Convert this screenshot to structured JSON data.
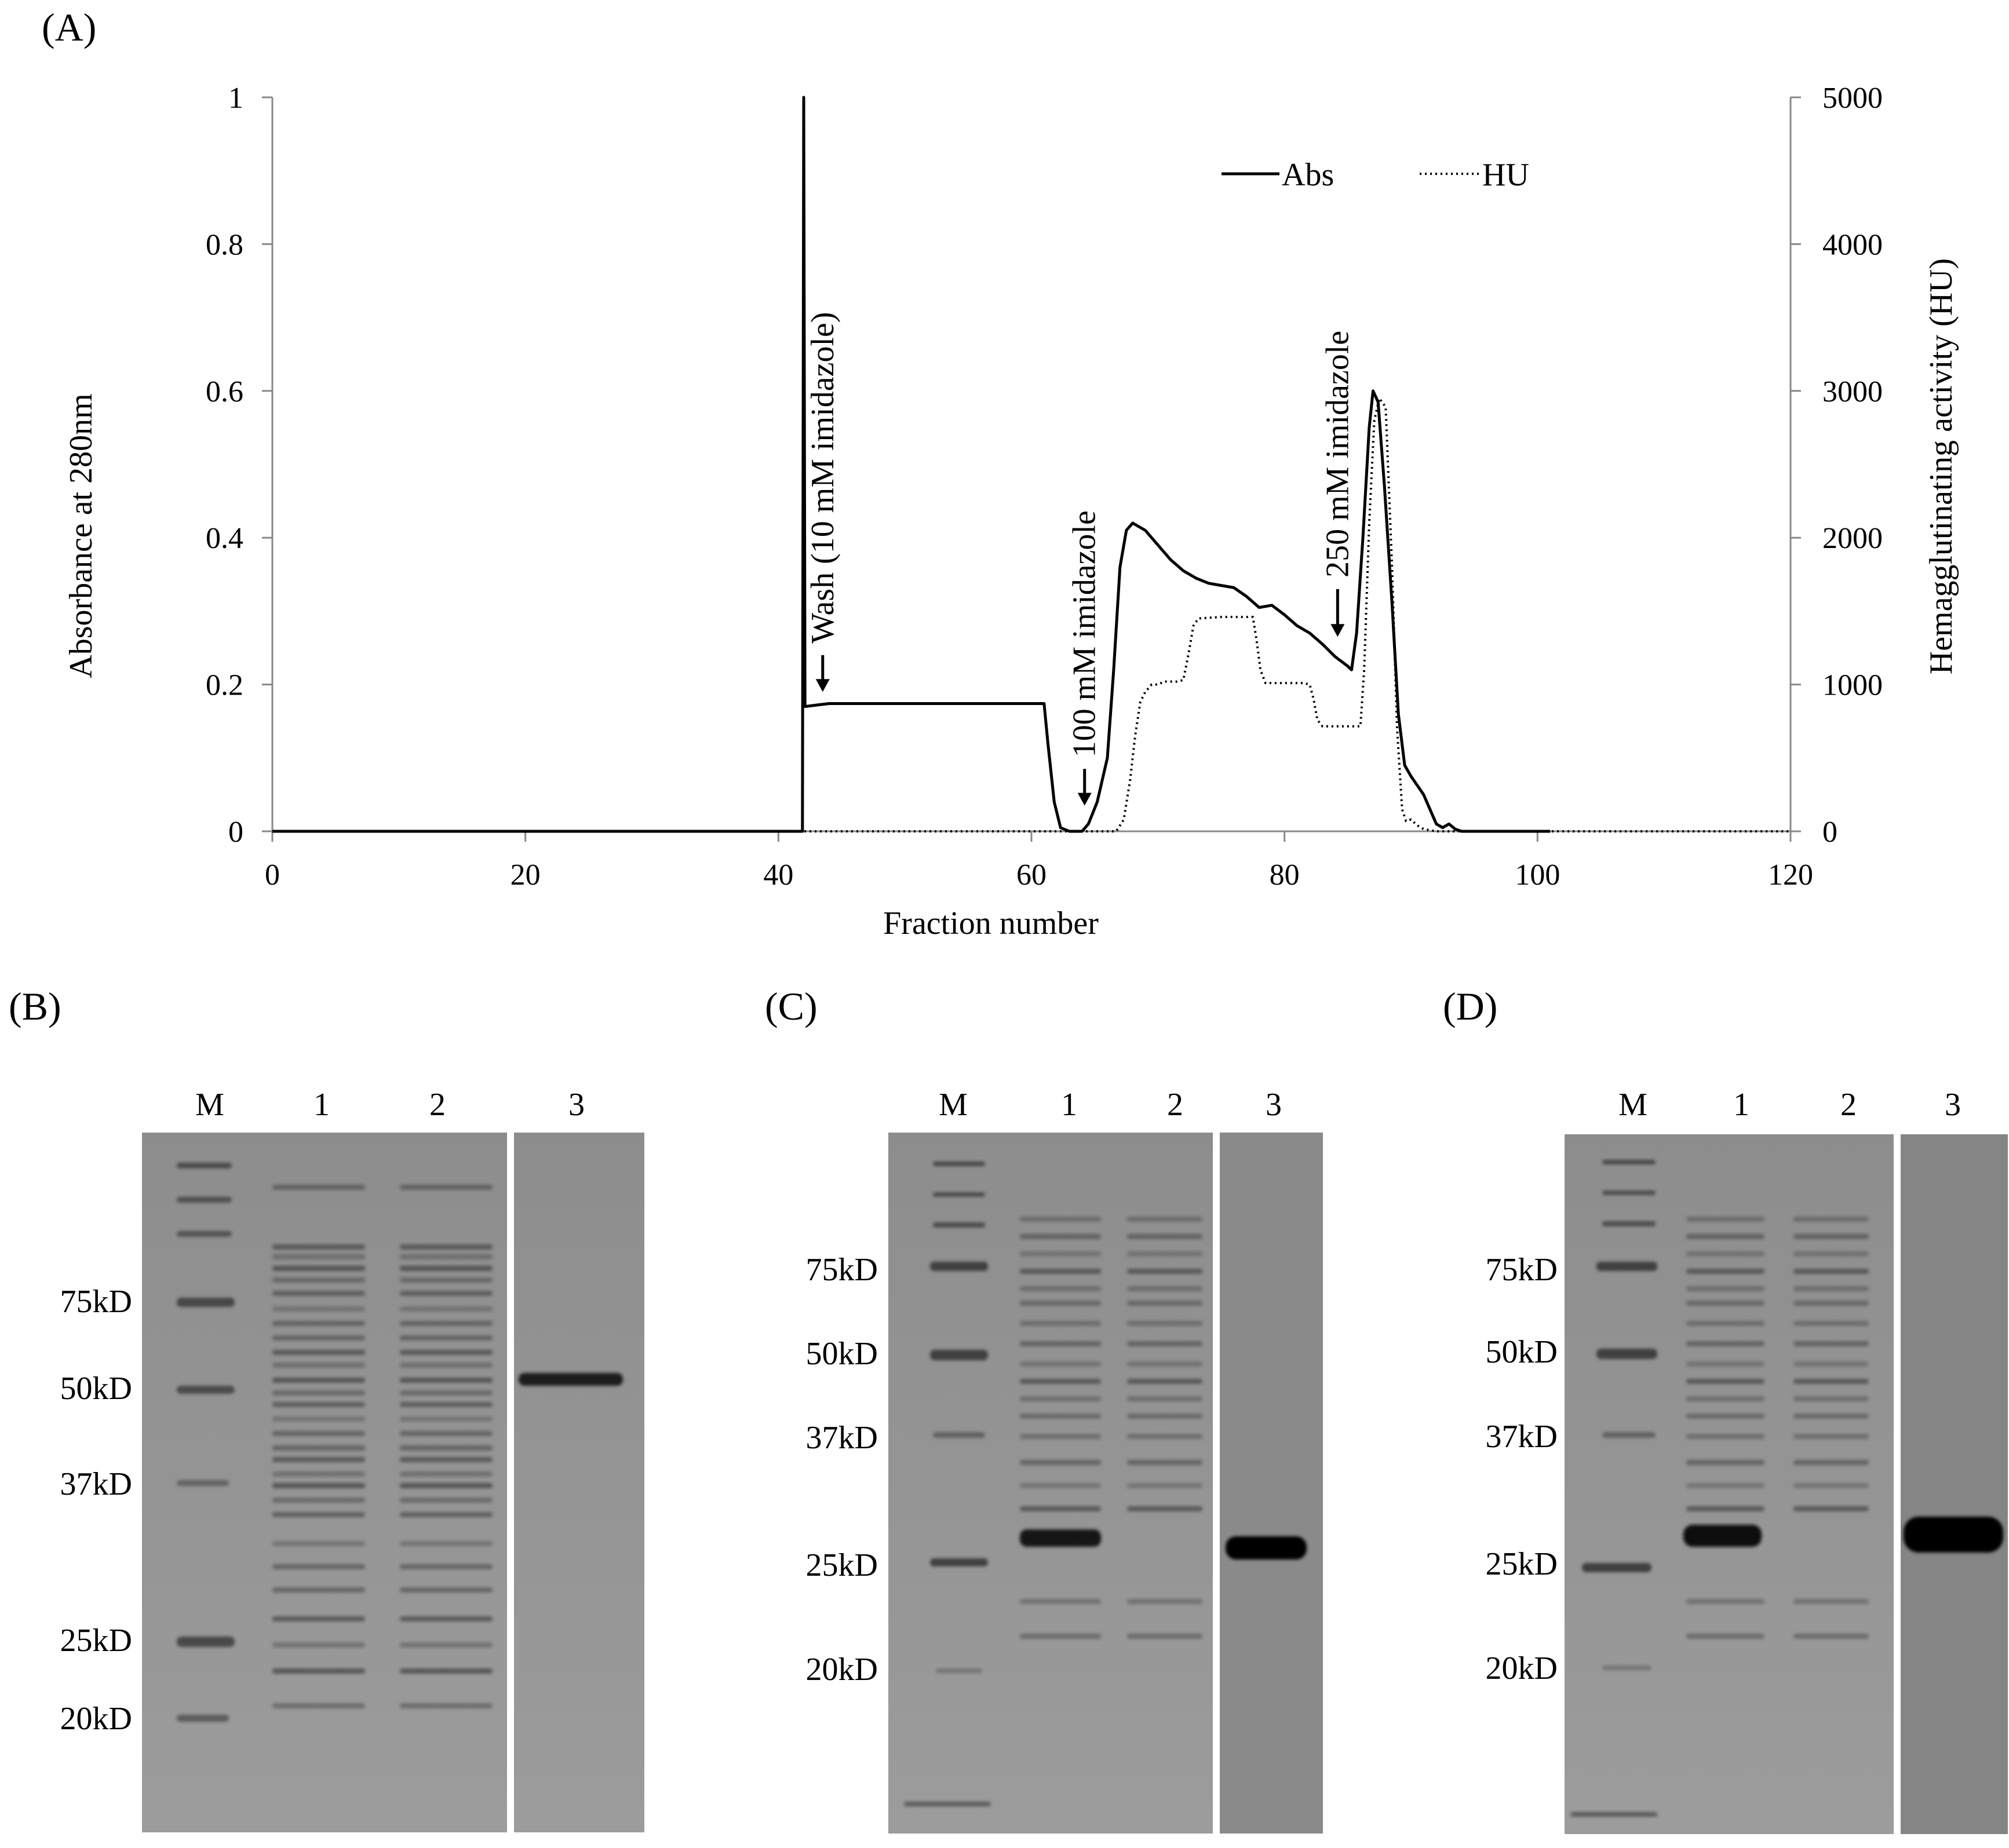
{
  "panels": {
    "A": "(A)",
    "B": "(B)",
    "C": "(C)",
    "D": "(D)"
  },
  "chart_data": {
    "type": "line",
    "xlabel": "Fraction number",
    "ylabel_left": "Absorbance at 280nm",
    "ylabel_right": "Hemagglutinating activity (HU)",
    "xlim": [
      0,
      120
    ],
    "ylim_left": [
      0,
      1
    ],
    "ylim_right": [
      0,
      5000
    ],
    "x_ticks": [
      0,
      20,
      40,
      60,
      80,
      100,
      120
    ],
    "y_left_ticks": [
      0,
      0.2,
      0.4,
      0.6,
      0.8,
      1
    ],
    "y_right_ticks": [
      0,
      1000,
      2000,
      3000,
      4000,
      5000
    ],
    "x_tick_labels": [
      "0",
      "20",
      "40",
      "60",
      "80",
      "100",
      "120"
    ],
    "y_left_tick_labels": [
      "0",
      "0.2",
      "0.4",
      "0.6",
      "0.8",
      "1"
    ],
    "y_right_tick_labels": [
      "0",
      "1000",
      "2000",
      "3000",
      "4000",
      "5000"
    ],
    "grid": false,
    "legend_position": "top-right",
    "series": [
      {
        "name": "Abs",
        "axis": "left",
        "style": "solid",
        "color": "#000000",
        "points": [
          [
            0,
            0
          ],
          [
            41.9,
            0
          ],
          [
            42,
            1
          ],
          [
            42.1,
            0.17
          ],
          [
            43,
            0.172
          ],
          [
            44,
            0.174
          ],
          [
            50,
            0.174
          ],
          [
            60,
            0.174
          ],
          [
            61,
            0.174
          ],
          [
            61.3,
            0.12
          ],
          [
            61.8,
            0.04
          ],
          [
            62.3,
            0.005
          ],
          [
            63,
            0
          ],
          [
            64,
            0
          ],
          [
            64.5,
            0.01
          ],
          [
            65.2,
            0.04
          ],
          [
            66,
            0.1
          ],
          [
            66.5,
            0.22
          ],
          [
            67,
            0.36
          ],
          [
            67.5,
            0.41
          ],
          [
            68,
            0.42
          ],
          [
            69,
            0.41
          ],
          [
            70,
            0.39
          ],
          [
            71,
            0.37
          ],
          [
            72,
            0.355
          ],
          [
            73,
            0.345
          ],
          [
            74,
            0.338
          ],
          [
            75,
            0.335
          ],
          [
            76,
            0.332
          ],
          [
            77,
            0.32
          ],
          [
            78,
            0.305
          ],
          [
            79,
            0.308
          ],
          [
            80,
            0.295
          ],
          [
            81,
            0.28
          ],
          [
            82,
            0.27
          ],
          [
            83,
            0.255
          ],
          [
            84,
            0.238
          ],
          [
            85,
            0.225
          ],
          [
            85.3,
            0.22
          ],
          [
            85.7,
            0.27
          ],
          [
            86.2,
            0.4
          ],
          [
            86.7,
            0.55
          ],
          [
            87,
            0.6
          ],
          [
            87.4,
            0.585
          ],
          [
            87.9,
            0.47
          ],
          [
            88.5,
            0.31
          ],
          [
            89,
            0.16
          ],
          [
            89.5,
            0.09
          ],
          [
            90,
            0.075
          ],
          [
            91,
            0.05
          ],
          [
            92,
            0.01
          ],
          [
            92.5,
            0.005
          ],
          [
            93,
            0.01
          ],
          [
            93.5,
            0.003
          ],
          [
            94,
            0
          ],
          [
            100,
            0
          ],
          [
            101,
            0
          ]
        ]
      },
      {
        "name": "HU",
        "axis": "right",
        "style": "dotted",
        "color": "#000000",
        "points": [
          [
            0,
            0
          ],
          [
            66.7,
            0
          ],
          [
            67.3,
            80
          ],
          [
            67.8,
            350
          ],
          [
            68.2,
            650
          ],
          [
            68.6,
            880
          ],
          [
            69,
            950
          ],
          [
            69.5,
            1000
          ],
          [
            70,
            1000
          ],
          [
            70.5,
            1020
          ],
          [
            71.5,
            1020
          ],
          [
            72,
            1030
          ],
          [
            72.4,
            1200
          ],
          [
            72.8,
            1400
          ],
          [
            73.2,
            1450
          ],
          [
            75,
            1460
          ],
          [
            77,
            1460
          ],
          [
            77.5,
            1460
          ],
          [
            77.8,
            1300
          ],
          [
            78.1,
            1100
          ],
          [
            78.5,
            1010
          ],
          [
            80,
            1010
          ],
          [
            81.5,
            1010
          ],
          [
            82,
            1000
          ],
          [
            82.3,
            900
          ],
          [
            82.6,
            760
          ],
          [
            83,
            715
          ],
          [
            84,
            715
          ],
          [
            85,
            715
          ],
          [
            86,
            715
          ],
          [
            86.3,
            1100
          ],
          [
            86.7,
            2100
          ],
          [
            87.1,
            2800
          ],
          [
            87.5,
            2950
          ],
          [
            88,
            2890
          ],
          [
            88.5,
            1800
          ],
          [
            88.9,
            700
          ],
          [
            89.3,
            150
          ],
          [
            89.6,
            70
          ],
          [
            90,
            80
          ],
          [
            90.5,
            40
          ],
          [
            91,
            15
          ],
          [
            92,
            0
          ],
          [
            120,
            0
          ]
        ]
      }
    ],
    "annotations": [
      {
        "text": "Wash (10 mM imidazole)",
        "x": 43.5,
        "arrow_from": 0.24,
        "arrow_to": 0.19
      },
      {
        "text": "100 mM imidazole",
        "x": 64.2,
        "arrow_from": 0.085,
        "arrow_to": 0.035
      },
      {
        "text": "250 mM imidazole",
        "x": 84.2,
        "arrow_from": 0.33,
        "arrow_to": 0.265
      }
    ]
  },
  "gels": [
    {
      "panel": "B",
      "lane_labels": [
        "M",
        "1",
        "2",
        "3"
      ],
      "mw_labels": [
        "75kD",
        "50kD",
        "37kD",
        "25kD",
        "20kD"
      ]
    },
    {
      "panel": "C",
      "lane_labels": [
        "M",
        "1",
        "2",
        "3"
      ],
      "mw_labels": [
        "75kD",
        "50kD",
        "37kD",
        "25kD",
        "20kD"
      ]
    },
    {
      "panel": "D",
      "lane_labels": [
        "M",
        "1",
        "2",
        "3"
      ],
      "mw_labels": [
        "75kD",
        "50kD",
        "37kD",
        "25kD",
        "20kD"
      ]
    }
  ]
}
